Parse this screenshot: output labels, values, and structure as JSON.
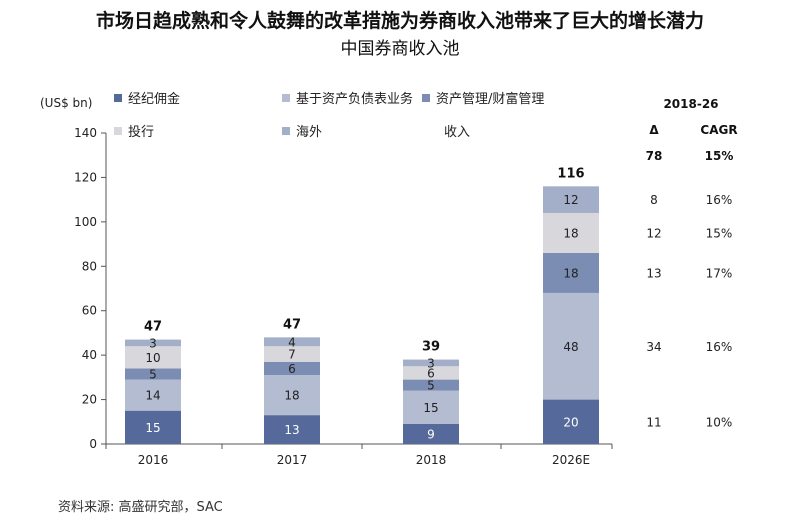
{
  "header": {
    "title": "市场日趋成熟和令人鼓舞的改革措施为券商收入池带来了巨大的增长潜力",
    "subtitle": "中国券商收入池"
  },
  "footer": {
    "source": "资料来源: 高盛研究部，SAC"
  },
  "colors": {
    "brokerage": "#556a9a",
    "balance_sheet": "#b4bcd2",
    "asset_mgmt": "#7c8db3",
    "ib": "#d8d8dc",
    "overseas": "#a3aec8"
  },
  "chart_data": {
    "type": "bar",
    "stacked": true,
    "categories": [
      "2016",
      "2017",
      "2018",
      "2026E"
    ],
    "ylabel": "(US$ bn)",
    "ylim": [
      0,
      140
    ],
    "yticks": [
      0,
      20,
      40,
      60,
      80,
      100,
      120,
      140
    ],
    "series": [
      {
        "name": "经纪佣金",
        "values": [
          15,
          13,
          9,
          20
        ],
        "color": "#556a9a"
      },
      {
        "name": "基于资产负债表业务",
        "values": [
          14,
          18,
          15,
          48
        ],
        "color": "#b4bcd2"
      },
      {
        "name": "资产管理/财富管理",
        "values": [
          5,
          6,
          5,
          18
        ],
        "color": "#7c8db3"
      },
      {
        "name": "投行",
        "values": [
          10,
          7,
          6,
          18
        ],
        "color": "#d8d8dc"
      },
      {
        "name": "海外",
        "values": [
          3,
          4,
          3,
          12
        ],
        "color": "#a3aec8"
      }
    ],
    "totals": [
      47,
      47,
      39,
      116
    ],
    "legend_extra": "收入",
    "side_table": {
      "title": "2018-26",
      "columns": [
        "Δ",
        "CAGR"
      ],
      "total": {
        "delta": "78",
        "cagr": "15%"
      },
      "rows": [
        {
          "delta": "8",
          "cagr": "16%"
        },
        {
          "delta": "12",
          "cagr": "15%"
        },
        {
          "delta": "13",
          "cagr": "17%"
        },
        {
          "delta": "34",
          "cagr": "16%"
        },
        {
          "delta": "11",
          "cagr": "10%"
        }
      ]
    }
  }
}
